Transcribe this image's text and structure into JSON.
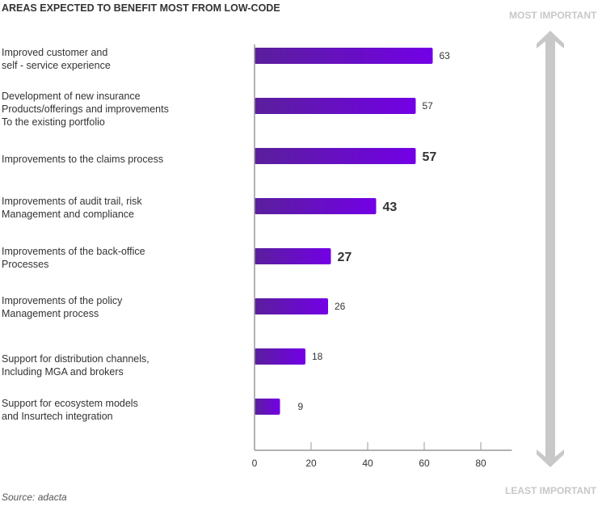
{
  "chart_data": {
    "type": "bar",
    "orientation": "horizontal",
    "title": "AREAS EXPECTED TO BENEFIT MOST FROM LOW-CODE",
    "categories": [
      "Improved customer and\nself - service experience",
      "Development of new insurance\nProducts/offerings and improvements\nTo the existing portfolio",
      "Improvements to the claims process",
      "Improvements of audit trail, risk\nManagement and compliance",
      "Improvements of the back-office\nProcesses",
      "Improvements of the policy\nManagement process",
      "Support for distribution channels,\nIncluding MGA and brokers",
      "Support for ecosystem models\nand Insurtech integration"
    ],
    "values": [
      63,
      57,
      57,
      43,
      27,
      26,
      18,
      9
    ],
    "value_labels": [
      "63",
      "57",
      "57",
      "43",
      "27",
      "26",
      "18",
      "9"
    ],
    "xlim": [
      0,
      91
    ],
    "xticks": [
      "0",
      "20",
      "40",
      "60",
      "80"
    ],
    "xtick_values": [
      0,
      20,
      40,
      60,
      80
    ],
    "grid": false,
    "bar_gradient": [
      "#5a1f9c",
      "#7300e6"
    ],
    "axis_top_label": "MOST IMPORTANT",
    "axis_bottom_label": "LEAST IMPORTANT",
    "arrow_color": "#c8c8c8",
    "source": "Source: adacta"
  }
}
